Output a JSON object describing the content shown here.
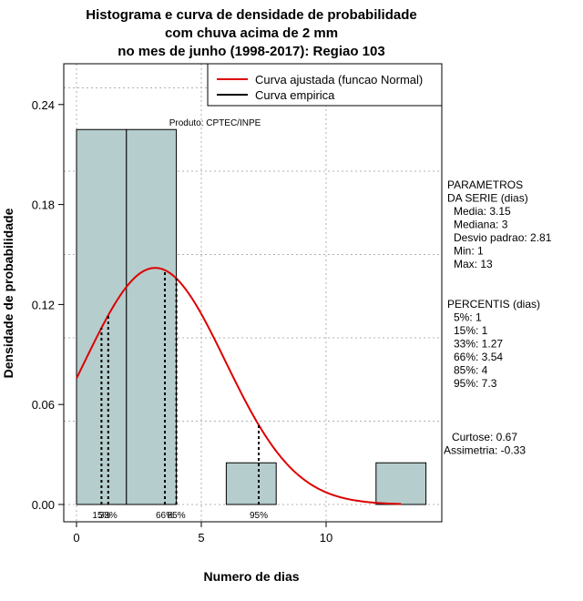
{
  "chart_data": {
    "type": "bar",
    "title": [
      "Histograma e curva de densidade de probabilidade",
      "com chuva acima de 2 mm",
      "no mes de junho (1998-2017): Regiao 103"
    ],
    "xlabel": "Numero de dias",
    "ylabel": "Densidade de probabilidade",
    "xlim": [
      -0.5,
      14.5
    ],
    "ylim": [
      0,
      0.26
    ],
    "x_ticks": [
      0,
      5,
      10
    ],
    "x_tick_labels": [
      "0",
      "5",
      "10"
    ],
    "y_ticks": [
      0.0,
      0.06,
      0.12,
      0.18,
      0.24
    ],
    "y_tick_labels": [
      "0.00",
      "0.06",
      "0.12",
      "0.18",
      "0.24"
    ],
    "grid_x": [
      0,
      5,
      10
    ],
    "grid_y": [
      0.0,
      0.05,
      0.1,
      0.15,
      0.2,
      0.25
    ],
    "bins": [
      {
        "x0": 0,
        "x1": 2,
        "density": 0.225
      },
      {
        "x0": 2,
        "x1": 4,
        "density": 0.225
      },
      {
        "x0": 6,
        "x1": 8,
        "density": 0.025
      },
      {
        "x0": 12,
        "x1": 14,
        "density": 0.025
      }
    ],
    "normal_fit": {
      "mean": 3.15,
      "sd": 2.81,
      "x_range": [
        0,
        13
      ]
    },
    "percentile_lines": [
      {
        "x": 1,
        "label": "15%"
      },
      {
        "x": 1.27,
        "label": "33%"
      },
      {
        "x": 3.54,
        "label": "66%"
      },
      {
        "x": 4,
        "label": "85%"
      },
      {
        "x": 7.3,
        "label": "95%"
      }
    ],
    "legend": {
      "position": "top-right",
      "entries": [
        {
          "label": "Curva ajustada (funcao Normal)",
          "color": "#dd0000"
        },
        {
          "label": "Curva empirica",
          "color": "#000000"
        }
      ]
    },
    "credit": "Produto: CPTEC/INPE",
    "params": {
      "heading": [
        "PARAMETROS",
        "DA SERIE (dias)"
      ],
      "lines": [
        "Media: 3.15",
        "Mediana: 3",
        "Desvio padrao: 2.81",
        "Min: 1",
        "Max: 13"
      ]
    },
    "percentis": {
      "heading": "PERCENTIS (dias)",
      "lines": [
        "5%: 1",
        "15%: 1",
        "33%: 1.27",
        "66%: 3.54",
        "85%: 4",
        "95%: 7.3"
      ]
    },
    "shape": {
      "lines": [
        "Curtose: 0.67",
        "Assimetria: -0.33"
      ]
    },
    "colors": {
      "bar_fill": "#b5cdcc",
      "curve": "#dd0000",
      "grid": "#b0b0b0"
    }
  }
}
